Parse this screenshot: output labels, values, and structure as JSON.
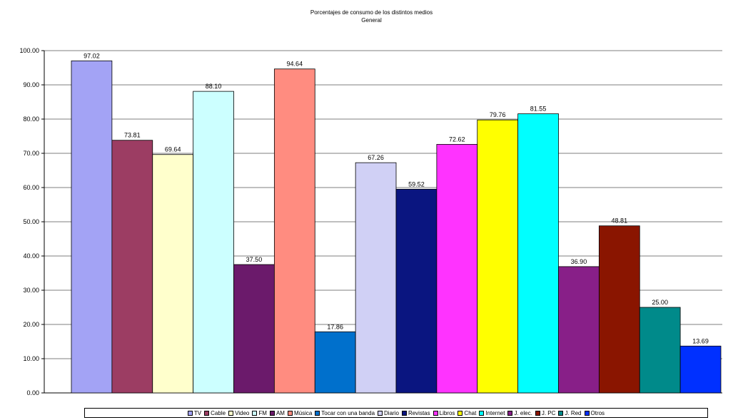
{
  "chart_data": {
    "type": "bar",
    "title": "Porcentajes de consumo de los distintos medios",
    "subtitle": "General",
    "xlabel": "",
    "ylabel": "",
    "ylim": [
      0,
      100
    ],
    "yticks": [
      "0.00",
      "10.00",
      "20.00",
      "30.00",
      "40.00",
      "50.00",
      "60.00",
      "70.00",
      "80.00",
      "90.00",
      "100.00"
    ],
    "grid": true,
    "legend_position": "bottom",
    "series": [
      {
        "name": "TV",
        "value": 97.02,
        "label": "97.02",
        "color": "#a3a3f5"
      },
      {
        "name": "Cable",
        "value": 73.81,
        "label": "73.81",
        "color": "#9c3d63"
      },
      {
        "name": "Video",
        "value": 69.64,
        "label": "69.64",
        "color": "#ffffcc"
      },
      {
        "name": "FM",
        "value": 88.1,
        "label": "88.10",
        "color": "#ccffff"
      },
      {
        "name": "AM",
        "value": 37.5,
        "label": "37.50",
        "color": "#6b1a6b"
      },
      {
        "name": "Música",
        "value": 94.64,
        "label": "94.64",
        "color": "#ff8c80"
      },
      {
        "name": "Tocar con una banda",
        "value": 17.86,
        "label": "17.86",
        "color": "#0070cc"
      },
      {
        "name": "Diario",
        "value": 67.26,
        "label": "67.26",
        "color": "#d0d0f5"
      },
      {
        "name": "Revistas",
        "value": 59.52,
        "label": "59.52",
        "color": "#0a1580"
      },
      {
        "name": "Libros",
        "value": 72.62,
        "label": "72.62",
        "color": "#ff33ff"
      },
      {
        "name": "Chat",
        "value": 79.76,
        "label": "79.76",
        "color": "#ffff00"
      },
      {
        "name": "Internet",
        "value": 81.55,
        "label": "81.55",
        "color": "#00ffff"
      },
      {
        "name": "J. elec.",
        "value": 36.9,
        "label": "36.90",
        "color": "#881f88"
      },
      {
        "name": "J. PC",
        "value": 48.81,
        "label": "48.81",
        "color": "#8a1500"
      },
      {
        "name": "J. Red",
        "value": 25.0,
        "label": "25.00",
        "color": "#008a8a"
      },
      {
        "name": "Otros",
        "value": 13.69,
        "label": "13.69",
        "color": "#0030ff"
      }
    ]
  }
}
